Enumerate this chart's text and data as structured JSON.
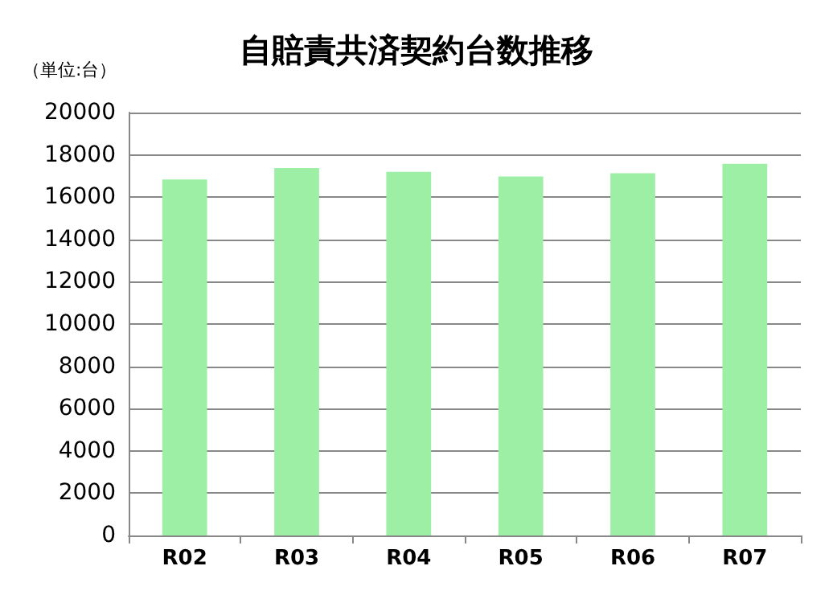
{
  "chart_data": {
    "type": "bar",
    "title": "自賠責共済契約台数推移",
    "annotations": [
      "（単位:台）"
    ],
    "categories": [
      "R02",
      "R03",
      "R04",
      "R05",
      "R06",
      "R07"
    ],
    "values": [
      16830,
      17380,
      17200,
      16980,
      17130,
      17580
    ],
    "color": "#9cefa4",
    "ylim": [
      0,
      20000
    ],
    "yticks": [
      0,
      2000,
      4000,
      6000,
      8000,
      10000,
      12000,
      14000,
      16000,
      18000,
      20000
    ],
    "grid": "y"
  }
}
